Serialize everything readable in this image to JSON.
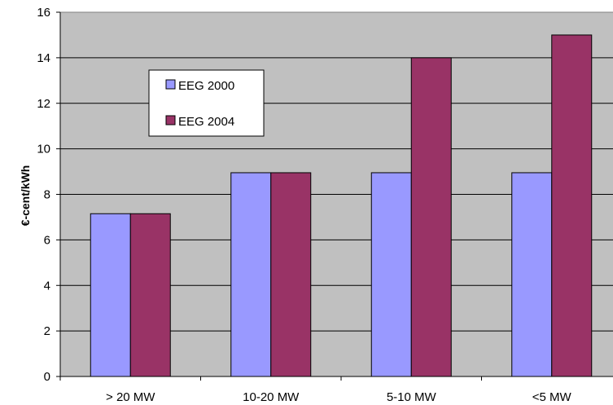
{
  "chart_data": {
    "type": "bar",
    "title": "",
    "xlabel": "",
    "ylabel": "€-cent/kWh",
    "categories": [
      "> 20 MW",
      "10-20 MW",
      "5-10 MW",
      "<5 MW"
    ],
    "series": [
      {
        "name": "EEG 2000",
        "values": [
          7.15,
          8.95,
          8.95,
          8.95
        ],
        "color": "#9999ff"
      },
      {
        "name": "EEG 2004",
        "values": [
          7.15,
          8.95,
          14,
          15
        ],
        "color": "#993366"
      }
    ],
    "ylim": [
      0,
      16
    ],
    "yticks": [
      0,
      2,
      4,
      6,
      8,
      10,
      12,
      14,
      16
    ],
    "grid": true,
    "legend_position": "top-left",
    "plot_background": "#c0c0c0"
  }
}
